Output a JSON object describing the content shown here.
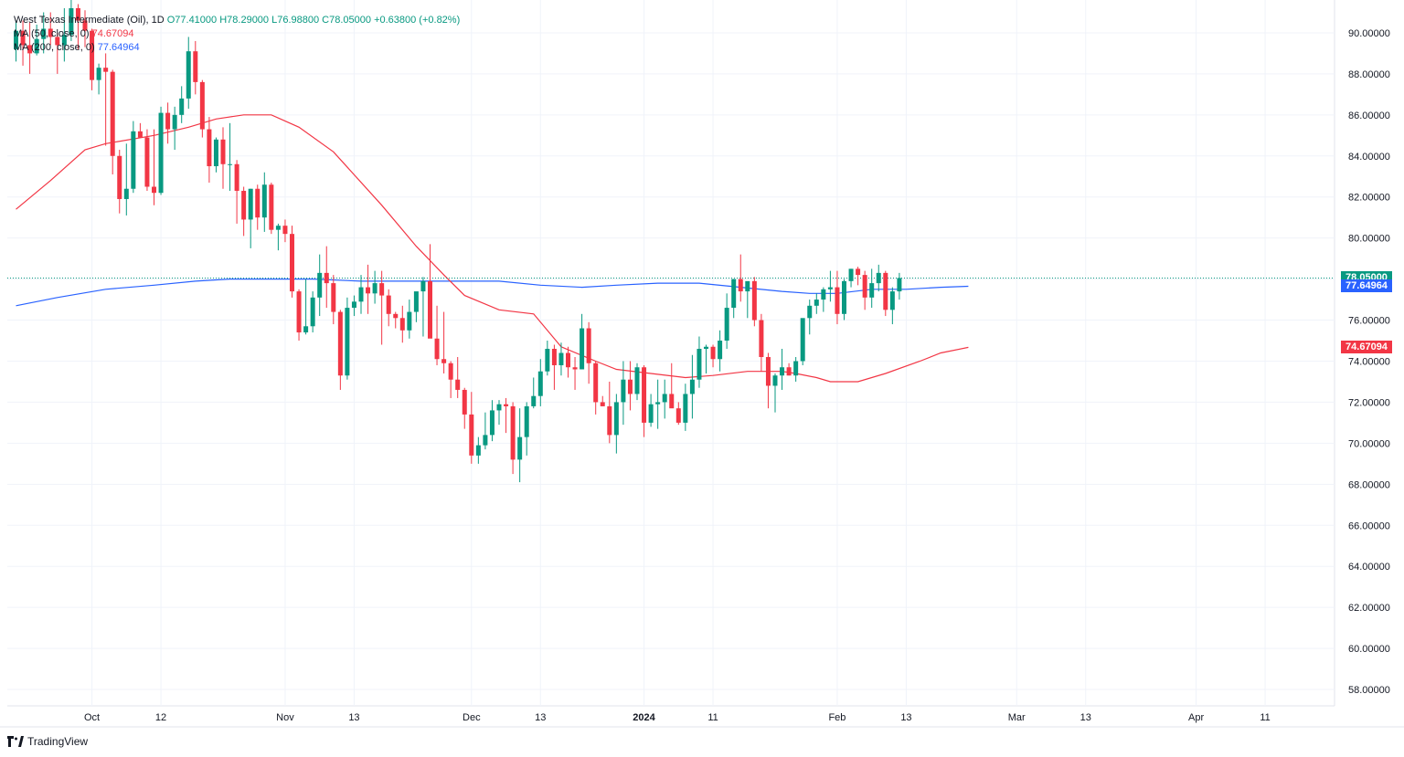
{
  "legend": {
    "title": "West Texas Intermediate (Oil), 1D",
    "open": "O77.41000",
    "high": "H78.29000",
    "low": "L76.98800",
    "close": "C78.05000",
    "change": "+0.63800 (+0.82%)",
    "ma50_label": "MA (50, close, 0)",
    "ma50_value": "74.67094",
    "ma200_label": "MA (200, close, 0)",
    "ma200_value": "77.64964"
  },
  "tags": {
    "last": "78.05000",
    "ma200": "77.64964",
    "ma50": "74.67094"
  },
  "colors": {
    "up": "#089981",
    "down": "#f23645",
    "ma50": "#f23645",
    "ma200": "#2962ff",
    "grid": "#f0f3fa"
  },
  "footer": {
    "brand": "TradingView"
  },
  "chart_data": {
    "type": "candlestick",
    "title": "West Texas Intermediate (Oil), 1D",
    "ylim": [
      57.2,
      91.6
    ],
    "y_ticks": [
      "58.00000",
      "60.00000",
      "62.00000",
      "64.00000",
      "66.00000",
      "68.00000",
      "70.00000",
      "72.00000",
      "74.00000",
      "76.00000",
      "78.00000",
      "80.00000",
      "82.00000",
      "84.00000",
      "86.00000",
      "88.00000",
      "90.00000"
    ],
    "x_ticks": [
      {
        "label": "Oct",
        "index": 11,
        "bold": false
      },
      {
        "label": "12",
        "index": 21,
        "bold": false
      },
      {
        "label": "Nov",
        "index": 39,
        "bold": false
      },
      {
        "label": "13",
        "index": 49,
        "bold": false
      },
      {
        "label": "Dec",
        "index": 66,
        "bold": false
      },
      {
        "label": "13",
        "index": 76,
        "bold": false
      },
      {
        "label": "2024",
        "index": 91,
        "bold": true
      },
      {
        "label": "11",
        "index": 101,
        "bold": false
      },
      {
        "label": "Feb",
        "index": 119,
        "bold": false
      },
      {
        "label": "13",
        "index": 129,
        "bold": false
      },
      {
        "label": "Mar",
        "index": 145,
        "bold": false
      },
      {
        "label": "13",
        "index": 155,
        "bold": false
      },
      {
        "label": "Apr",
        "index": 171,
        "bold": false
      },
      {
        "label": "11",
        "index": 181,
        "bold": false
      }
    ],
    "bars": [
      [
        89.2,
        90.6,
        88.6,
        90.1
      ],
      [
        90.1,
        90.6,
        88.4,
        89.4
      ],
      [
        89.4,
        90.5,
        88.0,
        89.0
      ],
      [
        89.0,
        90.4,
        88.9,
        89.7
      ],
      [
        89.7,
        91.0,
        89.0,
        90.2
      ],
      [
        90.2,
        91.0,
        89.4,
        89.8
      ],
      [
        89.8,
        90.0,
        88.0,
        89.4
      ],
      [
        89.4,
        91.2,
        88.6,
        89.9
      ],
      [
        89.9,
        92.0,
        89.6,
        91.2
      ],
      [
        91.2,
        91.4,
        89.2,
        90.6
      ],
      [
        90.6,
        91.1,
        89.3,
        90.1
      ],
      [
        90.1,
        90.2,
        87.2,
        87.7
      ],
      [
        87.7,
        88.5,
        87.0,
        88.3
      ],
      [
        88.3,
        89.0,
        84.5,
        88.1
      ],
      [
        88.1,
        88.2,
        83.1,
        84.0
      ],
      [
        84.0,
        84.3,
        81.2,
        81.9
      ],
      [
        81.9,
        84.6,
        81.1,
        82.4
      ],
      [
        82.4,
        85.7,
        82.2,
        85.2
      ],
      [
        85.2,
        85.6,
        84.9,
        84.9
      ],
      [
        84.9,
        85.3,
        82.3,
        82.5
      ],
      [
        82.5,
        85.3,
        81.6,
        82.2
      ],
      [
        82.2,
        86.4,
        82.1,
        86.1
      ],
      [
        86.1,
        86.6,
        84.6,
        85.3
      ],
      [
        85.3,
        86.4,
        84.3,
        86.0
      ],
      [
        86.0,
        87.4,
        85.6,
        86.8
      ],
      [
        86.8,
        89.8,
        86.3,
        89.1
      ],
      [
        89.1,
        89.6,
        87.0,
        87.6
      ],
      [
        87.6,
        87.7,
        84.9,
        85.3
      ],
      [
        85.3,
        85.9,
        82.7,
        83.5
      ],
      [
        83.5,
        84.9,
        83.2,
        84.8
      ],
      [
        84.8,
        85.4,
        82.4,
        83.6
      ],
      [
        83.6,
        85.6,
        82.3,
        83.6
      ],
      [
        83.6,
        83.8,
        80.7,
        82.3
      ],
      [
        82.3,
        82.5,
        80.1,
        80.9
      ],
      [
        80.9,
        82.4,
        79.5,
        82.4
      ],
      [
        82.4,
        82.6,
        80.4,
        81.0
      ],
      [
        81.0,
        83.2,
        80.3,
        82.6
      ],
      [
        82.6,
        82.7,
        80.2,
        80.4
      ],
      [
        80.4,
        80.7,
        79.4,
        80.6
      ],
      [
        80.6,
        80.9,
        79.8,
        80.2
      ],
      [
        80.2,
        80.6,
        77.1,
        77.4
      ],
      [
        77.4,
        77.5,
        75.0,
        75.4
      ],
      [
        75.4,
        78.0,
        75.3,
        75.7
      ],
      [
        75.7,
        77.4,
        75.4,
        77.1
      ],
      [
        77.1,
        79.2,
        76.2,
        78.3
      ],
      [
        78.3,
        79.6,
        76.6,
        77.8
      ],
      [
        77.8,
        78.2,
        75.8,
        76.4
      ],
      [
        76.4,
        76.5,
        72.6,
        73.3
      ],
      [
        73.3,
        77.1,
        73.1,
        76.6
      ],
      [
        76.6,
        77.2,
        76.2,
        76.9
      ],
      [
        76.9,
        78.2,
        76.3,
        77.6
      ],
      [
        77.6,
        78.7,
        76.3,
        77.3
      ],
      [
        77.3,
        78.4,
        76.8,
        77.8
      ],
      [
        77.8,
        78.4,
        74.8,
        77.2
      ],
      [
        77.2,
        77.5,
        75.7,
        76.3
      ],
      [
        76.3,
        76.4,
        75.6,
        76.1
      ],
      [
        76.1,
        76.7,
        74.9,
        75.5
      ],
      [
        75.5,
        77.0,
        75.1,
        76.4
      ],
      [
        76.4,
        77.1,
        75.9,
        77.4
      ],
      [
        77.4,
        78.1,
        75.2,
        77.9
      ],
      [
        77.9,
        79.7,
        75.6,
        75.1
      ],
      [
        75.1,
        76.7,
        73.8,
        74.1
      ],
      [
        74.1,
        76.4,
        73.4,
        73.9
      ],
      [
        73.9,
        74.0,
        72.2,
        73.1
      ],
      [
        73.1,
        74.2,
        72.2,
        72.6
      ],
      [
        72.6,
        72.7,
        70.7,
        71.4
      ],
      [
        71.4,
        72.5,
        69.0,
        69.4
      ],
      [
        69.4,
        70.3,
        69.0,
        69.9
      ],
      [
        69.9,
        71.5,
        69.7,
        70.4
      ],
      [
        70.4,
        72.1,
        70.1,
        71.6
      ],
      [
        71.6,
        72.1,
        70.9,
        71.9
      ],
      [
        71.9,
        72.2,
        70.5,
        71.8
      ],
      [
        71.8,
        72.0,
        68.5,
        69.2
      ],
      [
        69.2,
        71.7,
        68.1,
        70.3
      ],
      [
        70.3,
        72.0,
        69.4,
        71.8
      ],
      [
        71.8,
        73.2,
        71.7,
        72.3
      ],
      [
        72.3,
        74.1,
        71.8,
        73.5
      ],
      [
        73.5,
        75.0,
        73.3,
        74.6
      ],
      [
        74.6,
        74.8,
        72.6,
        73.8
      ],
      [
        73.8,
        74.9,
        73.3,
        74.4
      ],
      [
        74.4,
        74.7,
        73.2,
        73.7
      ],
      [
        73.7,
        74.2,
        72.6,
        73.6
      ],
      [
        73.6,
        76.3,
        73.6,
        75.6
      ],
      [
        75.6,
        75.9,
        72.9,
        73.9
      ],
      [
        73.9,
        74.0,
        71.4,
        72.0
      ],
      [
        72.0,
        72.3,
        71.8,
        71.8
      ],
      [
        71.8,
        73.0,
        70.0,
        70.4
      ],
      [
        70.4,
        72.4,
        69.5,
        72.0
      ],
      [
        72.0,
        74.0,
        70.9,
        73.1
      ],
      [
        73.1,
        74.0,
        71.6,
        72.4
      ],
      [
        72.4,
        73.9,
        72.1,
        73.7
      ],
      [
        73.7,
        73.8,
        70.3,
        71.0
      ],
      [
        71.0,
        72.4,
        70.8,
        71.9
      ],
      [
        71.9,
        73.1,
        70.7,
        72.0
      ],
      [
        72.0,
        73.1,
        71.2,
        72.4
      ],
      [
        72.4,
        73.9,
        71.8,
        71.7
      ],
      [
        71.7,
        72.0,
        70.9,
        71.0
      ],
      [
        71.0,
        72.9,
        70.6,
        72.4
      ],
      [
        72.4,
        74.3,
        71.2,
        73.1
      ],
      [
        73.1,
        75.2,
        72.7,
        74.6
      ],
      [
        74.6,
        74.8,
        73.4,
        74.7
      ],
      [
        74.7,
        74.8,
        73.7,
        74.1
      ],
      [
        74.1,
        75.5,
        73.5,
        75.0
      ],
      [
        75.0,
        77.3,
        74.6,
        76.6
      ],
      [
        76.6,
        78.0,
        76.1,
        78.0
      ],
      [
        78.0,
        79.2,
        76.9,
        77.4
      ],
      [
        77.4,
        77.8,
        76.1,
        77.9
      ],
      [
        77.9,
        78.1,
        75.7,
        76.0
      ],
      [
        76.0,
        76.3,
        73.5,
        74.2
      ],
      [
        74.2,
        74.4,
        71.7,
        72.8
      ],
      [
        72.8,
        73.4,
        71.5,
        73.3
      ],
      [
        73.3,
        74.6,
        72.6,
        73.7
      ],
      [
        73.7,
        73.9,
        73.3,
        73.3
      ],
      [
        73.3,
        74.2,
        73.0,
        74.0
      ],
      [
        74.0,
        76.0,
        73.8,
        76.1
      ],
      [
        76.1,
        77.0,
        75.3,
        76.7
      ],
      [
        76.7,
        77.3,
        76.3,
        77.0
      ],
      [
        77.0,
        77.6,
        76.4,
        77.5
      ],
      [
        77.5,
        78.4,
        76.9,
        77.6
      ],
      [
        77.6,
        78.4,
        75.8,
        76.3
      ],
      [
        76.3,
        78.0,
        76.0,
        77.9
      ],
      [
        77.9,
        78.5,
        77.6,
        78.5
      ],
      [
        78.5,
        78.6,
        77.7,
        78.2
      ],
      [
        78.2,
        78.4,
        76.5,
        77.1
      ],
      [
        77.1,
        78.5,
        76.6,
        77.8
      ],
      [
        77.8,
        78.7,
        77.4,
        78.3
      ],
      [
        78.3,
        78.4,
        76.2,
        76.5
      ],
      [
        76.5,
        77.6,
        75.8,
        77.4
      ],
      [
        77.4,
        78.3,
        77.0,
        78.05
      ]
    ],
    "ma50": [
      [
        0,
        81.4
      ],
      [
        5,
        82.8
      ],
      [
        10,
        84.3
      ],
      [
        13,
        84.6
      ],
      [
        20,
        85.0
      ],
      [
        25,
        85.4
      ],
      [
        29,
        85.8
      ],
      [
        33,
        86.0
      ],
      [
        37,
        86.0
      ],
      [
        41,
        85.4
      ],
      [
        46,
        84.2
      ],
      [
        53,
        81.6
      ],
      [
        58,
        79.6
      ],
      [
        62,
        78.2
      ],
      [
        65,
        77.2
      ],
      [
        70,
        76.5
      ],
      [
        75,
        76.3
      ],
      [
        79,
        74.7
      ],
      [
        84,
        74.0
      ],
      [
        87,
        73.6
      ],
      [
        92,
        73.4
      ],
      [
        97,
        73.2
      ],
      [
        101,
        73.3
      ],
      [
        106,
        73.5
      ],
      [
        111,
        73.5
      ],
      [
        113,
        73.4
      ],
      [
        116,
        73.2
      ],
      [
        118,
        73.0
      ],
      [
        122,
        73.0
      ],
      [
        126,
        73.4
      ],
      [
        131,
        74.0
      ],
      [
        134,
        74.4
      ],
      [
        138,
        74.67
      ]
    ],
    "ma200": [
      [
        0,
        76.7
      ],
      [
        6,
        77.1
      ],
      [
        13,
        77.5
      ],
      [
        20,
        77.7
      ],
      [
        26,
        77.9
      ],
      [
        31,
        78.0
      ],
      [
        37,
        78.0
      ],
      [
        43,
        78.0
      ],
      [
        50,
        77.9
      ],
      [
        57,
        77.9
      ],
      [
        64,
        77.9
      ],
      [
        70,
        77.9
      ],
      [
        76,
        77.7
      ],
      [
        82,
        77.6
      ],
      [
        87,
        77.7
      ],
      [
        93,
        77.8
      ],
      [
        99,
        77.8
      ],
      [
        105,
        77.6
      ],
      [
        111,
        77.4
      ],
      [
        115,
        77.3
      ],
      [
        119,
        77.3
      ],
      [
        124,
        77.5
      ],
      [
        129,
        77.5
      ],
      [
        134,
        77.6
      ],
      [
        138,
        77.65
      ]
    ],
    "last_price": 78.05
  }
}
